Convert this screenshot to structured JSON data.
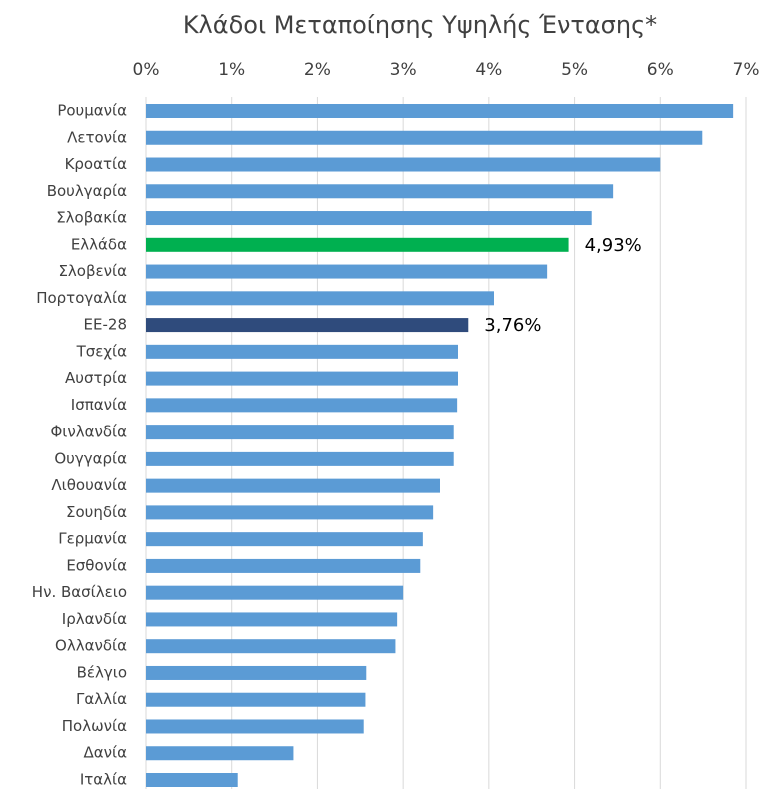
{
  "chart_data": {
    "type": "barh",
    "title": "Κλάδοι Μεταποίησης Υψηλής Έντασης*",
    "categories": [
      "Ρουμανία",
      "Λετονία",
      "Κροατία",
      "Βουλγαρία",
      "Σλοβακία",
      "Ελλάδα",
      "Σλοβενία",
      "Πορτογαλία",
      "ΕΕ-28",
      "Τσεχία",
      "Αυστρία",
      "Ισπανία",
      "Φινλανδία",
      "Ουγγαρία",
      "Λιθουανία",
      "Σουηδία",
      "Γερμανία",
      "Εσθονία",
      "Ην. Βασίλειο",
      "Ιρλανδία",
      "Ολλανδία",
      "Βέλγιο",
      "Γαλλία",
      "Πολωνία",
      "Δανία",
      "Ιταλία"
    ],
    "values": [
      6.85,
      6.49,
      6.0,
      5.45,
      5.2,
      4.93,
      4.68,
      4.06,
      3.76,
      3.64,
      3.64,
      3.63,
      3.59,
      3.59,
      3.43,
      3.35,
      3.23,
      3.2,
      3.0,
      2.93,
      2.91,
      2.57,
      2.56,
      2.54,
      1.72,
      1.07
    ],
    "value_labels": [
      null,
      null,
      null,
      null,
      null,
      "4,93%",
      null,
      null,
      "3,76%",
      null,
      null,
      null,
      null,
      null,
      null,
      null,
      null,
      null,
      null,
      null,
      null,
      null,
      null,
      null,
      null,
      null
    ],
    "colors": [
      "#5b9bd5",
      "#5b9bd5",
      "#5b9bd5",
      "#5b9bd5",
      "#5b9bd5",
      "#00b050",
      "#5b9bd5",
      "#5b9bd5",
      "#2f4b7c",
      "#5b9bd5",
      "#5b9bd5",
      "#5b9bd5",
      "#5b9bd5",
      "#5b9bd5",
      "#5b9bd5",
      "#5b9bd5",
      "#5b9bd5",
      "#5b9bd5",
      "#5b9bd5",
      "#5b9bd5",
      "#5b9bd5",
      "#5b9bd5",
      "#5b9bd5",
      "#5b9bd5",
      "#5b9bd5",
      "#5b9bd5"
    ],
    "xlim": [
      0,
      7
    ],
    "xticks": [
      {
        "value": 0,
        "label": "0%"
      },
      {
        "value": 1,
        "label": "1%"
      },
      {
        "value": 2,
        "label": "2%"
      },
      {
        "value": 3,
        "label": "3%"
      },
      {
        "value": 4,
        "label": "4%"
      },
      {
        "value": 5,
        "label": "5%"
      },
      {
        "value": 6,
        "label": "6%"
      },
      {
        "value": 7,
        "label": "7%"
      }
    ],
    "grid": true,
    "xaxis_position": "top"
  }
}
